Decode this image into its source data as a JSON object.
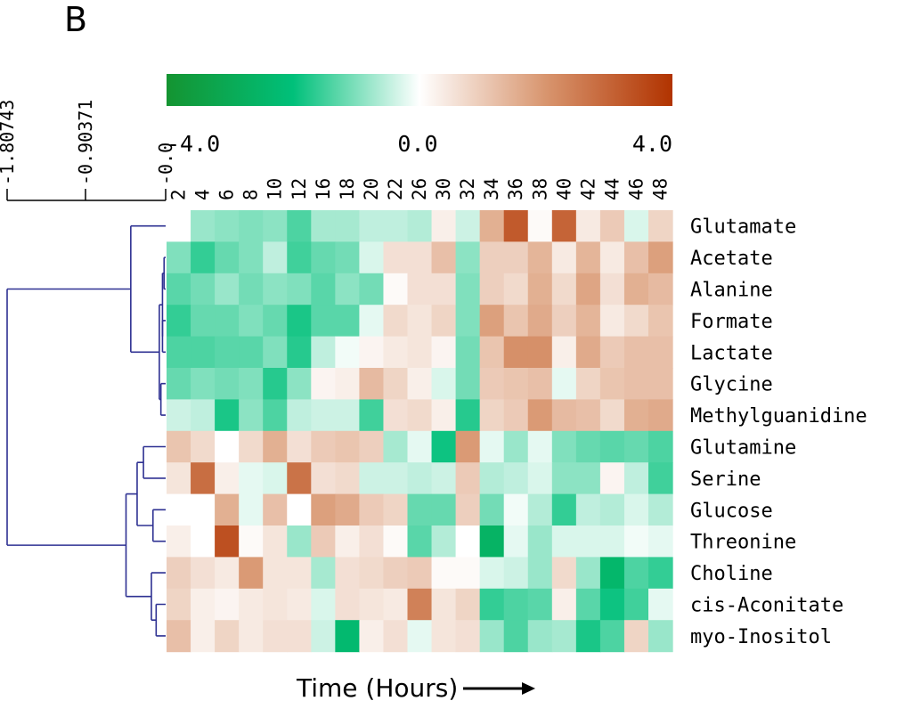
{
  "panel_label": "B",
  "chart_data": {
    "type": "heatmap",
    "xlabel": "Time (Hours)",
    "x": [
      "2",
      "4",
      "6",
      "8",
      "10",
      "12",
      "16",
      "18",
      "20",
      "22",
      "26",
      "30",
      "32",
      "34",
      "36",
      "38",
      "40",
      "42",
      "44",
      "46",
      "48"
    ],
    "rows": [
      "Glutamate",
      "Acetate",
      "Alanine",
      "Formate",
      "Lactate",
      "Glycine",
      "Methylguanidine",
      "Glutamine",
      "Serine",
      "Glucose",
      "Threonine",
      "Choline",
      "cis-Aconitate",
      "myo-Inositol"
    ],
    "color_scale": {
      "min": -4.0,
      "mid": 0.0,
      "max": 4.0,
      "labels": [
        "-4.0",
        "0.0",
        "4.0"
      ],
      "colors": [
        "#149431",
        "#00c07a",
        "#ffffff",
        "#d8956e",
        "#b13300"
      ]
    },
    "dendrogram_scale": {
      "labels": [
        "-1.80743",
        "-0.90371",
        "-0.0"
      ],
      "values": [
        -1.80743,
        -0.90371,
        0.0
      ]
    },
    "dendrogram_color": "#2e3192",
    "values": [
      [
        0.0,
        -0.8,
        -0.9,
        -1.0,
        -0.9,
        -1.4,
        -0.7,
        -0.7,
        -0.5,
        -0.5,
        -0.6,
        0.3,
        -0.4,
        1.5,
        3.2,
        0.1,
        3.0,
        0.4,
        1.0,
        -0.3,
        0.8
      ],
      [
        -1.0,
        -1.6,
        -1.2,
        -1.0,
        -0.5,
        -1.5,
        -1.2,
        -1.1,
        -0.3,
        0.6,
        0.6,
        1.2,
        -0.9,
        0.9,
        0.9,
        1.4,
        0.4,
        1.4,
        0.4,
        1.2,
        1.8
      ],
      [
        -1.3,
        -1.1,
        -0.8,
        -1.1,
        -0.9,
        -1.0,
        -1.3,
        -0.9,
        -1.1,
        0.1,
        0.6,
        0.6,
        -1.0,
        0.9,
        0.7,
        1.5,
        0.7,
        1.7,
        0.6,
        1.5,
        1.3
      ],
      [
        -1.6,
        -1.2,
        -1.2,
        -1.0,
        -1.2,
        -1.8,
        -1.3,
        -1.3,
        -0.2,
        0.7,
        0.5,
        0.8,
        -1.0,
        1.8,
        1.1,
        1.6,
        0.9,
        1.4,
        0.4,
        0.7,
        1.1
      ],
      [
        -1.4,
        -1.4,
        -1.3,
        -1.3,
        -1.0,
        -1.7,
        -0.5,
        -0.1,
        0.2,
        0.4,
        0.5,
        0.2,
        -1.1,
        1.1,
        2.1,
        2.1,
        0.3,
        1.6,
        1.0,
        1.2,
        1.2
      ],
      [
        -1.2,
        -1.0,
        -1.1,
        -1.0,
        -1.7,
        -0.9,
        0.2,
        0.3,
        1.3,
        0.8,
        0.3,
        -0.3,
        -1.1,
        1.0,
        1.1,
        1.2,
        -0.2,
        0.8,
        1.1,
        1.2,
        1.2
      ],
      [
        -0.4,
        -0.5,
        -1.8,
        -0.9,
        -1.4,
        -0.5,
        -0.4,
        -0.4,
        -1.5,
        0.6,
        0.7,
        0.3,
        -1.7,
        0.8,
        1.0,
        1.9,
        1.3,
        1.2,
        0.7,
        1.5,
        1.6
      ],
      [
        1.1,
        0.7,
        0.0,
        0.7,
        1.5,
        0.6,
        1.0,
        1.1,
        0.9,
        -0.7,
        -0.2,
        -1.9,
        1.9,
        -0.2,
        -0.8,
        -0.2,
        -1.0,
        -1.2,
        -1.3,
        -1.2,
        -1.4
      ],
      [
        0.5,
        2.8,
        0.3,
        -0.2,
        -0.3,
        2.7,
        0.6,
        0.7,
        -0.4,
        -0.4,
        -0.5,
        -0.4,
        1.0,
        -0.6,
        -0.5,
        -0.3,
        -0.9,
        -0.9,
        0.2,
        -0.5,
        -1.5
      ],
      [
        0.0,
        0.0,
        1.5,
        -0.2,
        1.2,
        0.0,
        1.8,
        1.6,
        1.0,
        0.8,
        -1.2,
        -1.2,
        0.9,
        -1.1,
        -0.1,
        -0.6,
        -1.6,
        -0.5,
        -0.6,
        -0.3,
        -0.6
      ],
      [
        0.3,
        0.0,
        3.4,
        0.1,
        0.5,
        -0.8,
        1.0,
        0.3,
        0.6,
        0.1,
        -1.3,
        -0.6,
        0.0,
        -2.6,
        -0.2,
        -0.8,
        -0.3,
        -0.3,
        -0.3,
        -0.1,
        -0.2
      ],
      [
        0.9,
        0.6,
        0.4,
        1.9,
        0.5,
        0.5,
        -0.7,
        0.6,
        0.7,
        0.9,
        1.0,
        0.1,
        0.1,
        -0.3,
        -0.4,
        -0.8,
        0.7,
        -0.8,
        -2.4,
        -1.4,
        -1.6
      ],
      [
        0.8,
        0.3,
        0.2,
        0.4,
        0.5,
        0.4,
        -0.3,
        0.6,
        0.5,
        0.4,
        2.4,
        0.5,
        0.8,
        -1.6,
        -1.4,
        -1.3,
        0.3,
        -1.3,
        -1.9,
        -1.5,
        -0.2
      ],
      [
        1.2,
        0.3,
        0.8,
        0.4,
        0.6,
        0.6,
        -0.4,
        -2.3,
        0.3,
        0.6,
        -0.2,
        0.5,
        0.6,
        -0.8,
        -1.4,
        -0.8,
        -0.7,
        -1.8,
        -1.4,
        0.8,
        -0.8
      ]
    ]
  }
}
